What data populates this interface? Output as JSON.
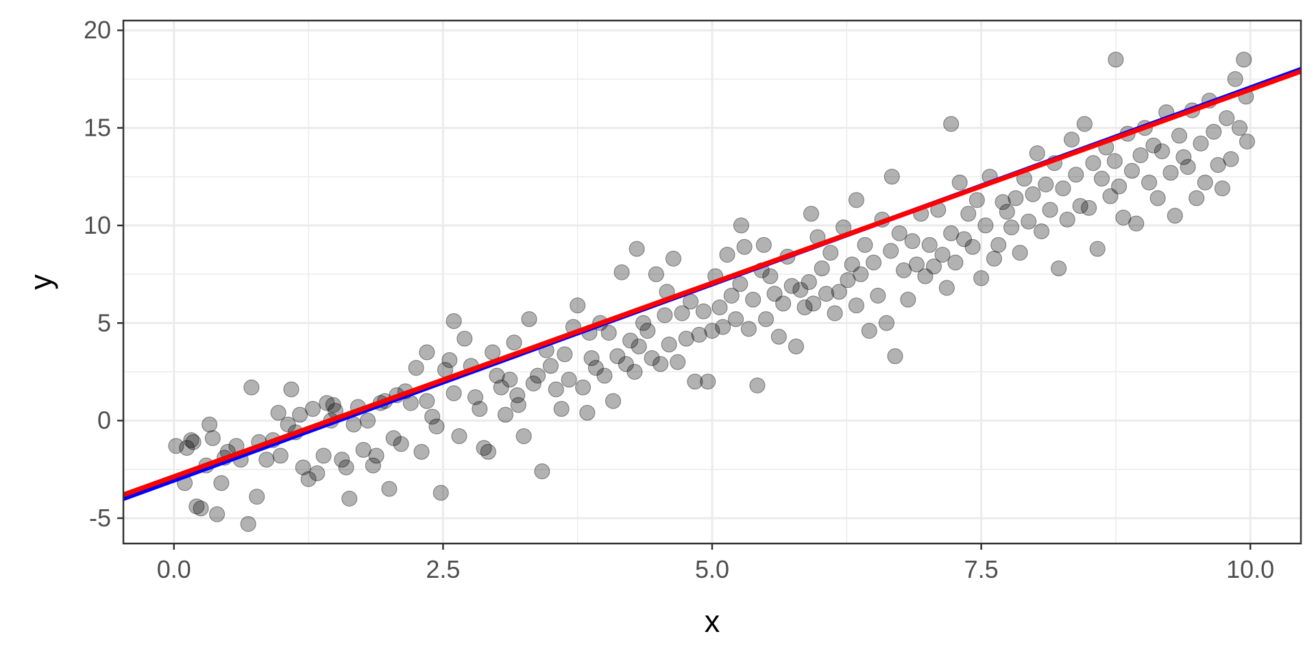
{
  "chart_data": {
    "type": "scatter",
    "title": "",
    "xlabel": "x",
    "ylabel": "y",
    "xlim": [
      -0.47,
      10.47
    ],
    "ylim": [
      -6.3,
      20.5
    ],
    "xticks": [
      0.0,
      2.5,
      5.0,
      7.5,
      10.0
    ],
    "xtick_labels": [
      "0.0",
      "2.5",
      "5.0",
      "7.5",
      "10.0"
    ],
    "yticks": [
      -5,
      0,
      5,
      10,
      15,
      20
    ],
    "ytick_labels": [
      "-5",
      "0",
      "5",
      "10",
      "15",
      "20"
    ],
    "grid": true,
    "legend": "none",
    "colors": {
      "points": "#000000",
      "line_blue": "#0000ff",
      "line_red": "#ff0000",
      "grid": "#ebebeb",
      "panel_border": "#333333"
    },
    "lines": [
      {
        "color": "#0000ff",
        "x": [
          -0.47,
          10.47
        ],
        "y": [
          -4.0,
          18.0
        ]
      },
      {
        "color": "#ff0000",
        "x": [
          -0.47,
          10.47
        ],
        "y": [
          -3.8,
          17.9
        ]
      }
    ],
    "points": [
      [
        0.02,
        -1.3
      ],
      [
        0.1,
        -3.2
      ],
      [
        0.12,
        -1.4
      ],
      [
        0.18,
        -1.1
      ],
      [
        0.21,
        -4.4
      ],
      [
        0.25,
        -4.5
      ],
      [
        0.3,
        -2.3
      ],
      [
        0.33,
        -0.2
      ],
      [
        0.36,
        -0.9
      ],
      [
        0.4,
        -4.8
      ],
      [
        0.44,
        -3.2
      ],
      [
        0.5,
        -1.6
      ],
      [
        0.58,
        -1.3
      ],
      [
        0.62,
        -2.0
      ],
      [
        0.69,
        -5.3
      ],
      [
        0.77,
        -3.9
      ],
      [
        0.79,
        -1.1
      ],
      [
        0.86,
        -2.0
      ],
      [
        0.92,
        -1.0
      ],
      [
        0.99,
        -1.8
      ],
      [
        1.06,
        -0.2
      ],
      [
        1.09,
        1.6
      ],
      [
        1.13,
        -0.6
      ],
      [
        1.17,
        0.3
      ],
      [
        1.2,
        -2.4
      ],
      [
        1.25,
        -3.0
      ],
      [
        1.29,
        0.6
      ],
      [
        1.33,
        -2.7
      ],
      [
        1.39,
        -1.8
      ],
      [
        1.42,
        0.9
      ],
      [
        1.46,
        0.0
      ],
      [
        1.5,
        0.5
      ],
      [
        1.56,
        -2.0
      ],
      [
        1.6,
        -2.4
      ],
      [
        1.63,
        -4.0
      ],
      [
        1.67,
        -0.2
      ],
      [
        1.71,
        0.7
      ],
      [
        1.76,
        -1.5
      ],
      [
        1.8,
        0.0
      ],
      [
        1.85,
        -2.3
      ],
      [
        1.88,
        -1.8
      ],
      [
        1.92,
        0.9
      ],
      [
        1.96,
        1.0
      ],
      [
        2.0,
        -3.5
      ],
      [
        2.04,
        -0.9
      ],
      [
        2.07,
        1.3
      ],
      [
        2.11,
        -1.2
      ],
      [
        2.15,
        1.5
      ],
      [
        2.2,
        0.9
      ],
      [
        2.25,
        2.7
      ],
      [
        2.3,
        -1.6
      ],
      [
        2.35,
        1.0
      ],
      [
        2.4,
        0.2
      ],
      [
        2.44,
        -0.3
      ],
      [
        2.48,
        -3.7
      ],
      [
        2.52,
        2.6
      ],
      [
        2.56,
        3.1
      ],
      [
        2.6,
        1.4
      ],
      [
        2.65,
        -0.8
      ],
      [
        2.7,
        4.2
      ],
      [
        2.76,
        2.8
      ],
      [
        2.8,
        1.2
      ],
      [
        2.84,
        0.6
      ],
      [
        2.88,
        -1.4
      ],
      [
        2.92,
        -1.6
      ],
      [
        2.96,
        3.5
      ],
      [
        3.0,
        2.3
      ],
      [
        3.04,
        1.7
      ],
      [
        3.08,
        0.3
      ],
      [
        3.12,
        2.1
      ],
      [
        3.16,
        4.0
      ],
      [
        3.2,
        0.8
      ],
      [
        3.25,
        -0.8
      ],
      [
        3.3,
        5.2
      ],
      [
        3.34,
        1.9
      ],
      [
        3.38,
        2.3
      ],
      [
        3.42,
        -2.6
      ],
      [
        3.46,
        3.6
      ],
      [
        3.5,
        2.8
      ],
      [
        3.55,
        1.6
      ],
      [
        3.6,
        0.6
      ],
      [
        3.63,
        3.4
      ],
      [
        3.67,
        2.1
      ],
      [
        3.71,
        4.8
      ],
      [
        3.75,
        5.9
      ],
      [
        3.8,
        1.7
      ],
      [
        3.84,
        0.4
      ],
      [
        3.88,
        3.2
      ],
      [
        3.92,
        2.7
      ],
      [
        3.96,
        5.0
      ],
      [
        4.0,
        2.3
      ],
      [
        4.04,
        4.5
      ],
      [
        4.08,
        1.0
      ],
      [
        4.12,
        3.3
      ],
      [
        4.16,
        7.6
      ],
      [
        4.2,
        2.9
      ],
      [
        4.24,
        4.1
      ],
      [
        4.28,
        2.5
      ],
      [
        4.32,
        3.8
      ],
      [
        4.36,
        5.0
      ],
      [
        4.4,
        4.6
      ],
      [
        4.44,
        3.2
      ],
      [
        4.48,
        7.5
      ],
      [
        4.52,
        2.9
      ],
      [
        4.56,
        5.4
      ],
      [
        4.6,
        3.9
      ],
      [
        4.64,
        8.3
      ],
      [
        4.68,
        3.0
      ],
      [
        4.72,
        5.5
      ],
      [
        4.76,
        4.2
      ],
      [
        4.8,
        6.1
      ],
      [
        4.84,
        2.0
      ],
      [
        4.88,
        4.4
      ],
      [
        4.92,
        5.6
      ],
      [
        4.96,
        2.0
      ],
      [
        5.0,
        4.6
      ],
      [
        5.03,
        7.4
      ],
      [
        5.07,
        5.8
      ],
      [
        5.1,
        4.8
      ],
      [
        5.14,
        8.5
      ],
      [
        5.18,
        6.4
      ],
      [
        5.22,
        5.2
      ],
      [
        5.26,
        7.0
      ],
      [
        5.3,
        8.9
      ],
      [
        5.34,
        4.7
      ],
      [
        5.38,
        6.2
      ],
      [
        5.42,
        1.8
      ],
      [
        5.46,
        7.7
      ],
      [
        5.5,
        5.2
      ],
      [
        5.54,
        7.4
      ],
      [
        5.58,
        6.5
      ],
      [
        5.62,
        4.3
      ],
      [
        5.66,
        6.0
      ],
      [
        5.7,
        8.4
      ],
      [
        5.74,
        6.9
      ],
      [
        5.78,
        3.8
      ],
      [
        5.82,
        6.7
      ],
      [
        5.86,
        5.8
      ],
      [
        5.9,
        7.1
      ],
      [
        5.94,
        6.0
      ],
      [
        5.98,
        9.4
      ],
      [
        6.02,
        7.8
      ],
      [
        6.06,
        6.5
      ],
      [
        6.1,
        8.6
      ],
      [
        6.14,
        5.5
      ],
      [
        6.18,
        6.6
      ],
      [
        6.22,
        9.9
      ],
      [
        6.26,
        7.2
      ],
      [
        6.3,
        8.0
      ],
      [
        6.34,
        5.9
      ],
      [
        6.38,
        7.5
      ],
      [
        6.42,
        9.0
      ],
      [
        6.46,
        4.6
      ],
      [
        6.5,
        8.1
      ],
      [
        6.54,
        6.4
      ],
      [
        6.58,
        10.3
      ],
      [
        6.62,
        5.0
      ],
      [
        6.66,
        8.7
      ],
      [
        6.7,
        3.3
      ],
      [
        6.74,
        9.6
      ],
      [
        6.78,
        7.7
      ],
      [
        6.82,
        6.2
      ],
      [
        6.86,
        9.2
      ],
      [
        6.9,
        8.0
      ],
      [
        6.94,
        10.6
      ],
      [
        6.98,
        7.4
      ],
      [
        7.02,
        9.0
      ],
      [
        7.06,
        7.9
      ],
      [
        7.1,
        10.8
      ],
      [
        7.14,
        8.5
      ],
      [
        7.18,
        6.8
      ],
      [
        7.22,
        9.6
      ],
      [
        7.26,
        8.1
      ],
      [
        7.3,
        12.2
      ],
      [
        7.34,
        9.3
      ],
      [
        7.38,
        10.6
      ],
      [
        7.42,
        8.9
      ],
      [
        7.46,
        11.3
      ],
      [
        7.5,
        7.3
      ],
      [
        7.54,
        10.0
      ],
      [
        7.58,
        12.5
      ],
      [
        7.62,
        8.3
      ],
      [
        7.66,
        9.0
      ],
      [
        7.7,
        11.2
      ],
      [
        7.74,
        10.7
      ],
      [
        7.78,
        9.9
      ],
      [
        7.82,
        11.4
      ],
      [
        7.86,
        8.6
      ],
      [
        7.9,
        12.4
      ],
      [
        7.94,
        10.2
      ],
      [
        7.98,
        11.6
      ],
      [
        8.02,
        13.7
      ],
      [
        8.06,
        9.7
      ],
      [
        8.1,
        12.1
      ],
      [
        8.14,
        10.8
      ],
      [
        8.18,
        13.2
      ],
      [
        8.22,
        7.8
      ],
      [
        8.26,
        11.9
      ],
      [
        8.3,
        10.3
      ],
      [
        8.34,
        14.4
      ],
      [
        8.38,
        12.6
      ],
      [
        8.42,
        11.0
      ],
      [
        8.46,
        15.2
      ],
      [
        8.5,
        10.9
      ],
      [
        8.54,
        13.2
      ],
      [
        8.58,
        8.8
      ],
      [
        8.62,
        12.4
      ],
      [
        8.66,
        14.0
      ],
      [
        8.7,
        11.5
      ],
      [
        8.74,
        13.3
      ],
      [
        8.78,
        12.0
      ],
      [
        8.82,
        10.4
      ],
      [
        8.86,
        14.7
      ],
      [
        8.9,
        12.8
      ],
      [
        8.94,
        10.1
      ],
      [
        8.98,
        13.6
      ],
      [
        9.02,
        15.0
      ],
      [
        9.06,
        12.2
      ],
      [
        9.1,
        14.1
      ],
      [
        9.14,
        11.4
      ],
      [
        9.18,
        13.8
      ],
      [
        9.22,
        15.8
      ],
      [
        9.26,
        12.7
      ],
      [
        9.3,
        10.5
      ],
      [
        9.34,
        14.6
      ],
      [
        9.38,
        13.5
      ],
      [
        9.42,
        13.0
      ],
      [
        9.46,
        15.9
      ],
      [
        9.5,
        11.4
      ],
      [
        9.54,
        14.2
      ],
      [
        9.58,
        12.2
      ],
      [
        9.62,
        16.4
      ],
      [
        9.66,
        14.8
      ],
      [
        9.7,
        13.1
      ],
      [
        9.74,
        11.9
      ],
      [
        9.78,
        15.5
      ],
      [
        9.82,
        13.4
      ],
      [
        9.86,
        17.5
      ],
      [
        9.9,
        15.0
      ],
      [
        9.94,
        18.5
      ],
      [
        9.96,
        16.6
      ],
      [
        9.97,
        14.3
      ],
      [
        0.16,
        -1.0
      ],
      [
        0.47,
        -1.9
      ],
      [
        0.72,
        1.7
      ],
      [
        0.97,
        0.4
      ],
      [
        1.48,
        0.8
      ],
      [
        2.35,
        3.5
      ],
      [
        2.6,
        5.1
      ],
      [
        3.19,
        1.3
      ],
      [
        3.86,
        4.5
      ],
      [
        4.3,
        8.8
      ],
      [
        4.58,
        6.6
      ],
      [
        5.27,
        10.0
      ],
      [
        5.48,
        9.0
      ],
      [
        5.92,
        10.6
      ],
      [
        6.34,
        11.3
      ],
      [
        6.67,
        12.5
      ],
      [
        7.22,
        15.2
      ],
      [
        8.75,
        18.5
      ]
    ]
  }
}
